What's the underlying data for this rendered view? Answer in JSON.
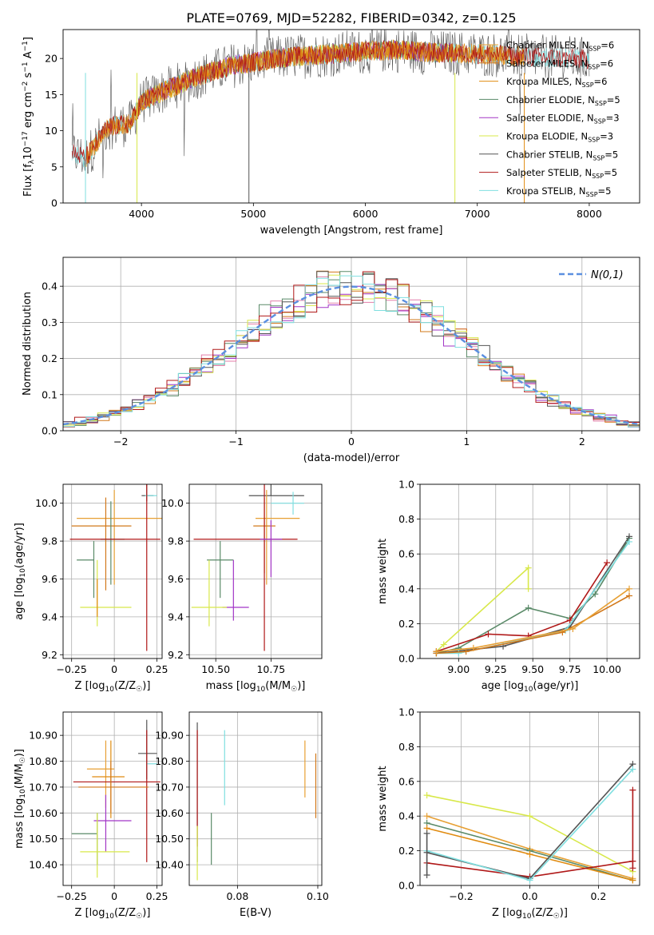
{
  "figure": {
    "title": "PLATE=0769, MJD=52282, FIBERID=0342, z=0.125"
  },
  "model_colors": [
    "#e7a034",
    "#d2781a",
    "#e08b10",
    "#5a8a68",
    "#a236c6",
    "#d8e84a",
    "#555555",
    "#b01818",
    "#7fdfe0"
  ],
  "model_labels": [
    "Chabrier MILES, N_SSP=6",
    "Salpeter MILES, N_SSP=6",
    "Kroupa MILES, N_SSP=6",
    "Chabrier ELODIE, N_SSP=5",
    "Salpeter ELODIE, N_SSP=3",
    "Kroupa ELODIE, N_SSP=3",
    "Chabrier STELIB, N_SSP=5",
    "Salpeter STELIB, N_SSP=5",
    "Kroupa STELIB, N_SSP=5"
  ],
  "chart_data": [
    {
      "id": "spectrum",
      "type": "line",
      "xlabel": "wavelength [Angstrom, rest frame]",
      "ylabel": "Flux [f_λ10^-17 erg cm^-2 s^-1 A^-1]",
      "xlim": [
        3300,
        8450
      ],
      "ylim": [
        0,
        24
      ],
      "xticks": [
        4000,
        5000,
        6000,
        7000,
        8000
      ],
      "yticks": [
        0,
        5,
        10,
        15,
        20
      ],
      "legend_position": "top-right",
      "continuum": {
        "x": [
          3380,
          3500,
          3700,
          3900,
          4000,
          4200,
          4500,
          4800,
          5000,
          5300,
          5600,
          6000,
          6300,
          6600,
          6900,
          7200,
          7500,
          7800,
          8100,
          8400
        ],
        "y": [
          7,
          6.2,
          10.5,
          11,
          14,
          15.5,
          17.5,
          19,
          19.5,
          20.2,
          20.5,
          21,
          21.2,
          20.8,
          20.7,
          20.5,
          20.2,
          20,
          19.8,
          19.8
        ]
      },
      "series_extents": [
        {
          "name": "Chabrier MILES, N_SSP=6",
          "x": [
            3500,
            7300
          ]
        },
        {
          "name": "Salpeter MILES, N_SSP=6",
          "x": [
            3500,
            7420
          ]
        },
        {
          "name": "Kroupa MILES, N_SSP=6",
          "x": [
            3500,
            7420
          ]
        },
        {
          "name": "Chabrier ELODIE, N_SSP=5",
          "x": [
            3950,
            6800
          ]
        },
        {
          "name": "Salpeter ELODIE, N_SSP=3",
          "x": [
            3950,
            6800
          ]
        },
        {
          "name": "Kroupa ELODIE, N_SSP=3",
          "x": [
            3950,
            6800
          ]
        },
        {
          "name": "Chabrier STELIB, N_SSP=5",
          "x": [
            3380,
            8000
          ]
        },
        {
          "name": "Salpeter STELIB, N_SSP=5",
          "x": [
            3380,
            8000
          ]
        },
        {
          "name": "Kroupa STELIB, N_SSP=5",
          "x": [
            3380,
            8000
          ]
        }
      ]
    },
    {
      "id": "residuals",
      "type": "histogram",
      "xlabel": "(data-model)/error",
      "ylabel": "Normed distribution",
      "xlim": [
        -2.5,
        2.5
      ],
      "ylim": [
        0,
        0.48
      ],
      "xticks": [
        -2,
        -1,
        0,
        1,
        2
      ],
      "yticks": [
        0,
        0.1,
        0.2,
        0.3,
        0.4
      ],
      "grid": true,
      "legend_position": "top-right",
      "reference_curve": {
        "name": "N(0,1)",
        "color": "#5b8fe0",
        "type": "gaussian",
        "mean": 0,
        "sigma": 1
      },
      "bin_width": 0.1,
      "bin_start": -2.5
    },
    {
      "id": "age_vs_Z",
      "type": "errorbar",
      "xlabel": "Z [log10(Z/Z☉)]",
      "ylabel": "age  [log10(age/yr)]",
      "xlim": [
        -0.3,
        0.28
      ],
      "ylim": [
        9.18,
        10.1
      ],
      "xticks": [
        -0.25,
        0.0,
        0.25
      ],
      "yticks": [
        9.2,
        9.4,
        9.6,
        9.8,
        10.0
      ],
      "grid": true,
      "points": [
        {
          "x": 0.19,
          "y": 10.04,
          "xerr": [
            0.03,
            0.04
          ],
          "yerr": [
            0.03,
            0.06
          ],
          "c": 6
        },
        {
          "x": 0.18,
          "y": 10.04,
          "xerr": [
            0.0,
            0.07
          ],
          "yerr": [
            0.0,
            0.0
          ],
          "c": 8
        },
        {
          "x": 0.0,
          "y": 9.92,
          "xerr": [
            0.22,
            0.3
          ],
          "yerr": [
            0.35,
            0.15
          ],
          "c": 0
        },
        {
          "x": -0.05,
          "y": 9.88,
          "xerr": [
            0.2,
            0.15
          ],
          "yerr": [
            0.34,
            0.15
          ],
          "c": 1
        },
        {
          "x": -0.02,
          "y": 9.81,
          "xerr": [
            0.06,
            0.08
          ],
          "yerr": [
            0.24,
            0.2
          ],
          "c": 3
        },
        {
          "x": 0.19,
          "y": 9.81,
          "xerr": [
            0.45,
            0.08
          ],
          "yerr": [
            0.59,
            0.29
          ],
          "c": 7
        },
        {
          "x": -0.12,
          "y": 9.7,
          "xerr": [
            0.1,
            0.0
          ],
          "yerr": [
            0.2,
            0.1
          ],
          "c": 3
        },
        {
          "x": -0.1,
          "y": 9.45,
          "xerr": [
            0.1,
            0.2
          ],
          "yerr": [
            0.1,
            0.25
          ],
          "c": 5
        },
        {
          "x": -0.1,
          "y": 9.45,
          "xerr": [
            0.0,
            0.0
          ],
          "yerr": [
            0.05,
            0.15
          ],
          "c": 2
        }
      ]
    },
    {
      "id": "age_vs_mass",
      "type": "errorbar",
      "xlabel": "mass [log10(M/M☉)]",
      "ylabel": "",
      "xlim": [
        10.38,
        10.98
      ],
      "ylim": [
        9.18,
        10.1
      ],
      "xticks": [
        10.5,
        10.75
      ],
      "xticklabels": [
        "10.50",
        "10.75"
      ],
      "yticks": [
        9.2,
        9.4,
        9.6,
        9.8,
        10.0
      ],
      "grid": true,
      "points": [
        {
          "x": 10.75,
          "y": 10.04,
          "xerr": [
            0.1,
            0.15
          ],
          "yerr": [
            0.0,
            0.06
          ],
          "c": 6
        },
        {
          "x": 10.85,
          "y": 10.0,
          "xerr": [
            0.1,
            0.05
          ],
          "yerr": [
            0.06,
            0.06
          ],
          "c": 8
        },
        {
          "x": 10.73,
          "y": 9.92,
          "xerr": [
            0.05,
            0.15
          ],
          "yerr": [
            0.35,
            0.15
          ],
          "c": 0
        },
        {
          "x": 10.72,
          "y": 9.88,
          "xerr": [
            0.05,
            0.05
          ],
          "yerr": [
            0.25,
            0.15
          ],
          "c": 1
        },
        {
          "x": 10.72,
          "y": 9.81,
          "xerr": [
            0.32,
            0.15
          ],
          "yerr": [
            0.59,
            0.29
          ],
          "c": 7
        },
        {
          "x": 10.75,
          "y": 9.81,
          "xerr": [
            0.05,
            0.05
          ],
          "yerr": [
            0.2,
            0.1
          ],
          "c": 4
        },
        {
          "x": 10.52,
          "y": 9.7,
          "xerr": [
            0.06,
            0.06
          ],
          "yerr": [
            0.2,
            0.1
          ],
          "c": 3
        },
        {
          "x": 10.58,
          "y": 9.45,
          "xerr": [
            0.05,
            0.07
          ],
          "yerr": [
            0.07,
            0.25
          ],
          "c": 4
        },
        {
          "x": 10.47,
          "y": 9.45,
          "xerr": [
            0.08,
            0.08
          ],
          "yerr": [
            0.1,
            0.25
          ],
          "c": 5
        }
      ]
    },
    {
      "id": "weight_vs_age",
      "type": "line",
      "xlabel": "age  [log10(age/yr)]",
      "ylabel": "mass weight",
      "xlim": [
        8.74,
        10.22
      ],
      "ylim": [
        0,
        1.0
      ],
      "xticks": [
        9.0,
        9.25,
        9.5,
        9.75,
        10.0
      ],
      "xticklabels": [
        "9.00",
        "9.25",
        "9.50",
        "9.75",
        "10.00"
      ],
      "yticks": [
        0,
        0.2,
        0.4,
        0.6,
        0.8,
        1.0
      ],
      "grid": true,
      "series": [
        {
          "c": 5,
          "x": [
            8.85,
            8.9,
            9.47,
            9.47
          ],
          "y": [
            0.04,
            0.08,
            0.52,
            0.4
          ]
        },
        {
          "c": 3,
          "x": [
            8.85,
            9.0,
            9.47,
            9.75,
            9.92,
            10.15
          ],
          "y": [
            0.03,
            0.06,
            0.29,
            0.23,
            0.37,
            0.69
          ]
        },
        {
          "c": 7,
          "x": [
            8.85,
            9.2,
            9.47,
            9.75,
            10.0
          ],
          "y": [
            0.04,
            0.14,
            0.13,
            0.22,
            0.55
          ]
        },
        {
          "c": 6,
          "x": [
            8.85,
            9.3,
            9.75,
            10.15
          ],
          "y": [
            0.03,
            0.07,
            0.18,
            0.7
          ]
        },
        {
          "c": 8,
          "x": [
            8.85,
            9.0,
            9.72,
            10.15
          ],
          "y": [
            0.03,
            0.03,
            0.16,
            0.67
          ]
        },
        {
          "c": 1,
          "x": [
            8.85,
            9.05,
            9.7,
            10.15
          ],
          "y": [
            0.03,
            0.04,
            0.15,
            0.36
          ]
        },
        {
          "c": 0,
          "x": [
            8.85,
            9.1,
            9.77,
            10.15
          ],
          "y": [
            0.04,
            0.06,
            0.17,
            0.4
          ]
        }
      ]
    },
    {
      "id": "mass_vs_Z",
      "type": "errorbar",
      "xlabel": "Z [log10(Z/Z☉)]",
      "ylabel": "mass [log10(M/M☉)]",
      "xlim": [
        -0.3,
        0.28
      ],
      "ylim": [
        10.32,
        10.99
      ],
      "xticks": [
        -0.25,
        0.0,
        0.25
      ],
      "yticks": [
        10.4,
        10.5,
        10.6,
        10.7,
        10.8,
        10.9
      ],
      "grid": true,
      "points": [
        {
          "x": 0.19,
          "y": 10.83,
          "xerr": [
            0.05,
            0.06
          ],
          "yerr": [
            0.1,
            0.13
          ],
          "c": 6
        },
        {
          "x": 0.19,
          "y": 10.79,
          "xerr": [
            0.0,
            0.06
          ],
          "yerr": [
            0.0,
            0.0
          ],
          "c": 8
        },
        {
          "x": -0.05,
          "y": 10.77,
          "xerr": [
            0.11,
            0.05
          ],
          "yerr": [
            0.15,
            0.11
          ],
          "c": 0
        },
        {
          "x": -0.02,
          "y": 10.74,
          "xerr": [
            0.11,
            0.08
          ],
          "yerr": [
            0.16,
            0.14
          ],
          "c": 2
        },
        {
          "x": 0.19,
          "y": 10.72,
          "xerr": [
            0.43,
            0.08
          ],
          "yerr": [
            0.31,
            0.2
          ],
          "c": 7
        },
        {
          "x": -0.02,
          "y": 10.7,
          "xerr": [
            0.19,
            0.22
          ],
          "yerr": [
            0.1,
            0.1
          ],
          "c": 1
        },
        {
          "x": -0.1,
          "y": 10.52,
          "xerr": [
            0.15,
            0.0
          ],
          "yerr": [
            0.12,
            0.08
          ],
          "c": 3
        },
        {
          "x": -0.05,
          "y": 10.57,
          "xerr": [
            0.07,
            0.15
          ],
          "yerr": [
            0.12,
            0.1
          ],
          "c": 4
        },
        {
          "x": -0.1,
          "y": 10.45,
          "xerr": [
            0.1,
            0.19
          ],
          "yerr": [
            0.1,
            0.15
          ],
          "c": 5
        }
      ]
    },
    {
      "id": "mass_vs_ebv",
      "type": "errorbar",
      "xlabel": "E(B-V)",
      "ylabel": "",
      "xlim": [
        0.068,
        0.101
      ],
      "ylim": [
        10.32,
        10.99
      ],
      "xticks": [
        0.08,
        0.1
      ],
      "xticklabels": [
        "0.08",
        "0.10"
      ],
      "yticks": [
        10.4,
        10.5,
        10.6,
        10.7,
        10.8,
        10.9
      ],
      "grid": true,
      "points": [
        {
          "x": 0.07,
          "y": 10.72,
          "xerr": [
            0,
            0
          ],
          "yerr": [
            0.31,
            0.23
          ],
          "c": 6
        },
        {
          "x": 0.07,
          "y": 10.72,
          "xerr": [
            0,
            0
          ],
          "yerr": [
            0.25,
            0.2
          ],
          "c": 7
        },
        {
          "x": 0.07,
          "y": 10.45,
          "xerr": [
            0,
            0
          ],
          "yerr": [
            0.11,
            0.1
          ],
          "c": 5
        },
        {
          "x": 0.0735,
          "y": 10.5,
          "xerr": [
            0,
            0
          ],
          "yerr": [
            0.1,
            0.1
          ],
          "c": 3
        },
        {
          "x": 0.0768,
          "y": 10.78,
          "xerr": [
            0,
            0
          ],
          "yerr": [
            0.15,
            0.14
          ],
          "c": 8
        },
        {
          "x": 0.0968,
          "y": 10.77,
          "xerr": [
            0,
            0
          ],
          "yerr": [
            0.11,
            0.11
          ],
          "c": 0
        },
        {
          "x": 0.0995,
          "y": 10.7,
          "xerr": [
            0,
            0
          ],
          "yerr": [
            0.12,
            0.13
          ],
          "c": 1
        }
      ]
    },
    {
      "id": "weight_vs_Z",
      "type": "line",
      "xlabel": "Z [log10(Z/Z☉)]",
      "ylabel": "mass weight",
      "xlim": [
        -0.32,
        0.32
      ],
      "ylim": [
        0,
        1.0
      ],
      "xticks": [
        -0.2,
        0.0,
        0.2
      ],
      "xticklabels": [
        "−0.2",
        "0.0",
        "0.2"
      ],
      "yticks": [
        0,
        0.2,
        0.4,
        0.6,
        0.8,
        1.0
      ],
      "grid": true,
      "series": [
        {
          "c": 5,
          "x": [
            -0.3,
            0.0,
            0.3
          ],
          "y": [
            0.52,
            0.4,
            0.08
          ]
        },
        {
          "c": 0,
          "x": [
            -0.3,
            0.0,
            0.3
          ],
          "y": [
            0.4,
            0.21,
            0.04
          ]
        },
        {
          "c": 3,
          "x": [
            -0.3,
            0.0,
            0.3
          ],
          "y": [
            0.36,
            0.2,
            0.03
          ]
        },
        {
          "c": 2,
          "x": [
            -0.3,
            0.0,
            0.3
          ],
          "y": [
            0.33,
            0.18,
            0.03
          ]
        },
        {
          "c": 7,
          "x": [
            -0.3,
            0.0,
            0.3
          ],
          "y": [
            0.13,
            0.05,
            0.14
          ]
        },
        {
          "c": 6,
          "x": [
            -0.3,
            0.0,
            0.3
          ],
          "y": [
            0.19,
            0.04,
            0.7
          ]
        },
        {
          "c": 8,
          "x": [
            -0.3,
            0.0,
            0.3
          ],
          "y": [
            0.2,
            0.03,
            0.67
          ]
        },
        {
          "c": 7,
          "x": [
            0.3,
            0.3
          ],
          "y": [
            0.55,
            0.1
          ]
        },
        {
          "c": 6,
          "x": [
            -0.3,
            -0.3
          ],
          "y": [
            0.06,
            0.3
          ]
        }
      ]
    }
  ]
}
